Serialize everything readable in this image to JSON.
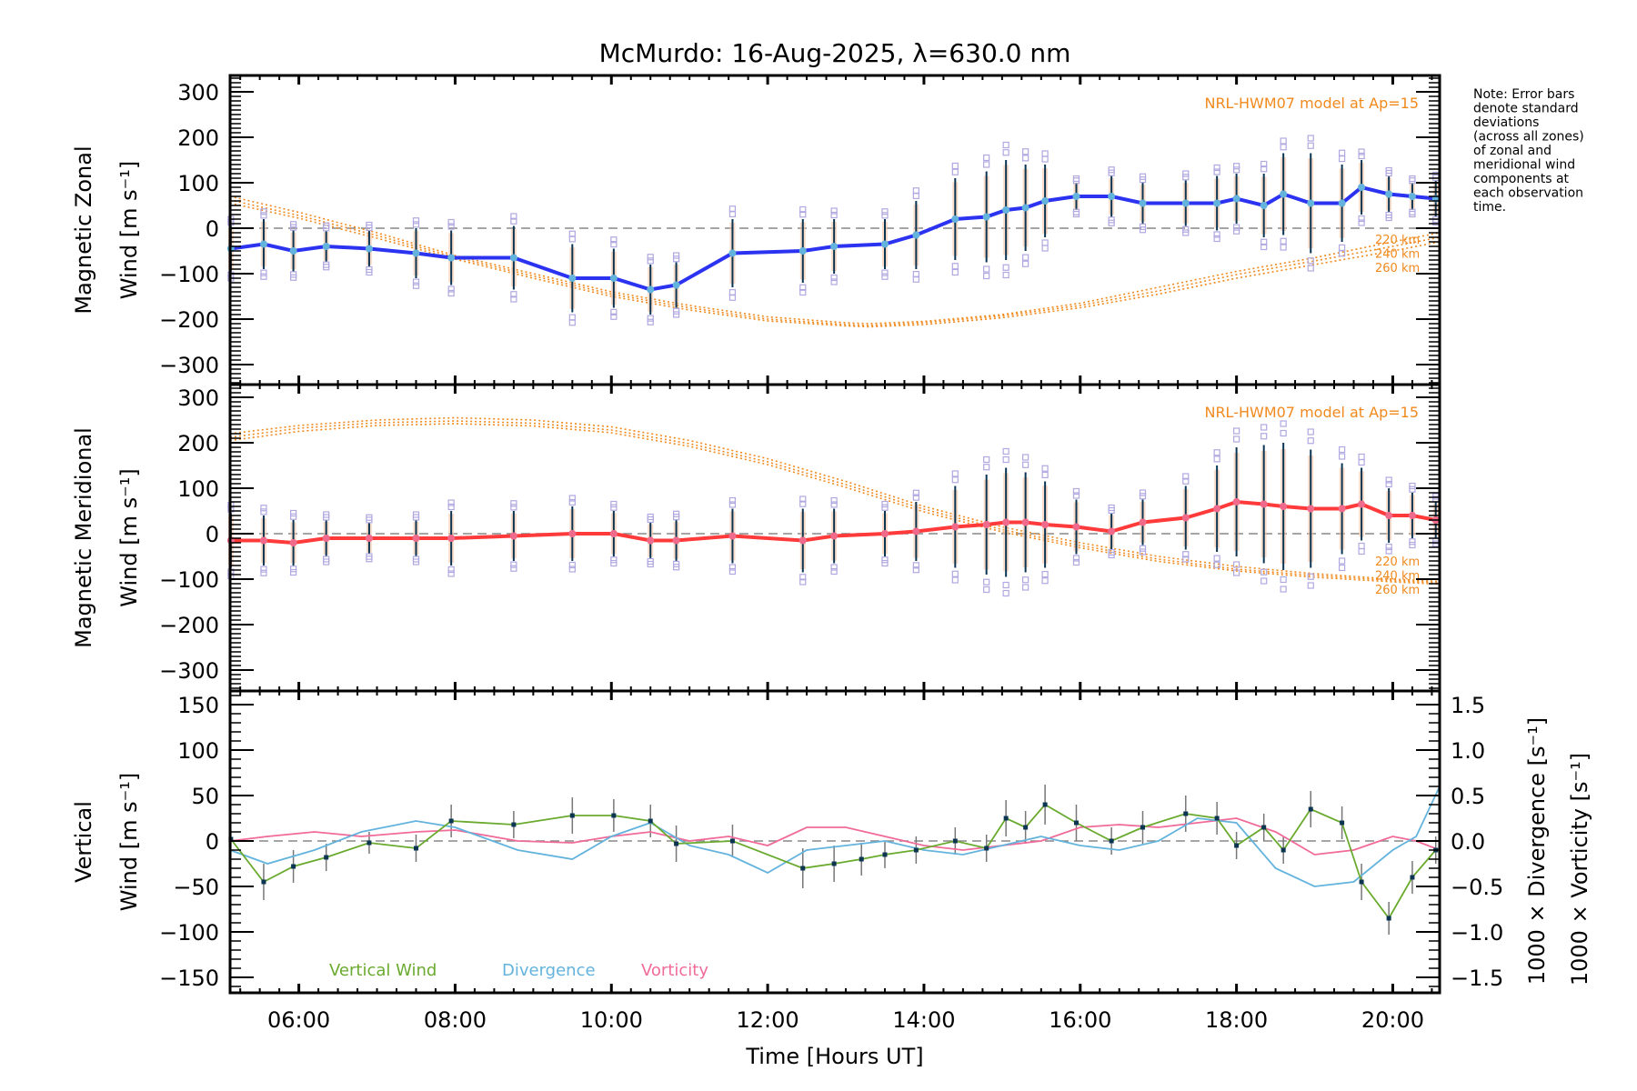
{
  "chart_data": {
    "type": "line",
    "title": "McMurdo: 16-Aug-2025, λ=630.0 nm",
    "xlabel": "Time [Hours UT]",
    "xlim_hours": [
      5.12,
      20.6
    ],
    "x_ticks": [
      {
        "h": 6,
        "label": "06:00"
      },
      {
        "h": 8,
        "label": "08:00"
      },
      {
        "h": 10,
        "label": "10:00"
      },
      {
        "h": 12,
        "label": "12:00"
      },
      {
        "h": 14,
        "label": "14:00"
      },
      {
        "h": 16,
        "label": "16:00"
      },
      {
        "h": 18,
        "label": "18:00"
      },
      {
        "h": 20,
        "label": "20:00"
      }
    ],
    "note_lines": [
      "Note: Error bars",
      "denote standard",
      "deviations",
      "(across all zones)",
      "of zonal and",
      "meridional wind",
      "components at",
      "each observation",
      "time."
    ],
    "panels": [
      {
        "id": "zonal",
        "ylabel_line1": "Magnetic Zonal",
        "ylabel_line2": "Wind [m s⁻¹]",
        "ylim": [
          -344,
          336
        ],
        "y_ticks": [
          300,
          200,
          100,
          0,
          -100,
          -200,
          -300
        ],
        "y_tick_labels": [
          "300",
          "200",
          "100",
          "0",
          "−100",
          "−200",
          "−300"
        ],
        "model_label": "NRL-HWM07 model at Ap=15",
        "altitude_labels": [
          "220 km",
          "240 km",
          "260 km"
        ],
        "line_color": "#2b32f0",
        "marker_color": "#63b3dd",
        "series": {
          "name": "Magnetic Zonal Wind",
          "x": [
            5.13,
            5.55,
            5.93,
            6.35,
            6.9,
            7.5,
            7.95,
            8.75,
            9.5,
            10.03,
            10.5,
            10.83,
            11.55,
            12.45,
            12.85,
            13.5,
            13.9,
            14.4,
            14.8,
            15.05,
            15.3,
            15.55,
            15.95,
            16.4,
            16.8,
            17.35,
            17.75,
            18.0,
            18.35,
            18.6,
            18.95,
            19.35,
            19.6,
            19.95,
            20.25,
            20.55
          ],
          "y": [
            -45,
            -35,
            -50,
            -40,
            -45,
            -55,
            -65,
            -65,
            -110,
            -110,
            -135,
            -125,
            -55,
            -50,
            -40,
            -35,
            -15,
            20,
            25,
            40,
            45,
            60,
            70,
            70,
            55,
            55,
            55,
            65,
            50,
            75,
            55,
            55,
            90,
            75,
            70,
            65
          ],
          "err": [
            50,
            55,
            45,
            35,
            40,
            55,
            60,
            70,
            75,
            65,
            55,
            50,
            75,
            70,
            60,
            55,
            75,
            90,
            100,
            110,
            95,
            80,
            30,
            45,
            45,
            50,
            60,
            55,
            70,
            90,
            110,
            85,
            60,
            40,
            30,
            40
          ]
        },
        "model_curves": [
          {
            "altitude": "220 km",
            "x": [
              5.12,
              6,
              7,
              8,
              9,
              10,
              11,
              12,
              13,
              13.3,
              14,
              15,
              16,
              17,
              18,
              19,
              20,
              20.6
            ],
            "y": [
              70,
              35,
              -10,
              -60,
              -100,
              -140,
              -170,
              -195,
              -208,
              -210,
              -205,
              -190,
              -165,
              -130,
              -95,
              -65,
              -30,
              -10
            ]
          },
          {
            "altitude": "240 km",
            "x": [
              5.12,
              6,
              7,
              8,
              9,
              10,
              11,
              12,
              13,
              13.3,
              14,
              15,
              16,
              17,
              18,
              19,
              20,
              20.6
            ],
            "y": [
              62,
              28,
              -16,
              -64,
              -105,
              -145,
              -175,
              -200,
              -212,
              -214,
              -208,
              -193,
              -170,
              -138,
              -102,
              -72,
              -40,
              -20
            ]
          },
          {
            "altitude": "260 km",
            "x": [
              5.12,
              6,
              7,
              8,
              9,
              10,
              11,
              12,
              13,
              13.3,
              14,
              15,
              16,
              17,
              18,
              19,
              20,
              20.6
            ],
            "y": [
              55,
              22,
              -22,
              -68,
              -110,
              -150,
              -180,
              -204,
              -215,
              -217,
              -212,
              -197,
              -175,
              -145,
              -110,
              -80,
              -50,
              -30
            ]
          }
        ]
      },
      {
        "id": "meridional",
        "ylabel_line1": "Magnetic Meridional",
        "ylabel_line2": "Wind [m s⁻¹]",
        "ylim": [
          -346,
          328
        ],
        "y_ticks": [
          300,
          200,
          100,
          0,
          -100,
          -200,
          -300
        ],
        "y_tick_labels": [
          "300",
          "200",
          "100",
          "0",
          "−100",
          "−200",
          "−300"
        ],
        "model_label": "NRL-HWM07 model at Ap=15",
        "altitude_labels": [
          "220 km",
          "240 km",
          "260 km"
        ],
        "line_color": "#ff3a3a",
        "marker_color": "#f06a8c",
        "series": {
          "name": "Magnetic Meridional Wind",
          "x": [
            5.13,
            5.55,
            5.93,
            6.35,
            6.9,
            7.5,
            7.95,
            8.75,
            9.5,
            10.03,
            10.5,
            10.83,
            11.55,
            12.45,
            12.85,
            13.5,
            13.9,
            14.4,
            14.8,
            15.05,
            15.3,
            15.55,
            15.95,
            16.4,
            16.8,
            17.35,
            17.75,
            18.0,
            18.35,
            18.6,
            18.95,
            19.35,
            19.6,
            19.95,
            20.25,
            20.55
          ],
          "y": [
            -15,
            -15,
            -20,
            -10,
            -10,
            -10,
            -10,
            -5,
            0,
            0,
            -15,
            -15,
            -5,
            -15,
            -5,
            0,
            5,
            15,
            20,
            25,
            25,
            20,
            15,
            5,
            25,
            35,
            55,
            70,
            65,
            60,
            55,
            55,
            65,
            40,
            40,
            30
          ],
          "err": [
            60,
            55,
            50,
            40,
            35,
            40,
            60,
            55,
            60,
            50,
            40,
            45,
            60,
            70,
            60,
            50,
            65,
            90,
            110,
            120,
            110,
            95,
            60,
            40,
            50,
            70,
            95,
            120,
            130,
            140,
            130,
            100,
            80,
            60,
            50,
            40
          ]
        },
        "model_curves": [
          {
            "altitude": "220 km",
            "x": [
              5.12,
              6,
              7,
              8,
              9,
              10,
              11,
              12,
              13,
              14,
              15,
              16,
              17,
              18,
              19,
              20,
              20.6
            ],
            "y": [
              220,
              238,
              250,
              255,
              250,
              235,
              205,
              165,
              115,
              60,
              15,
              -20,
              -50,
              -72,
              -88,
              -100,
              -105
            ]
          },
          {
            "altitude": "240 km",
            "x": [
              5.12,
              6,
              7,
              8,
              9,
              10,
              11,
              12,
              13,
              14,
              15,
              16,
              17,
              18,
              19,
              20,
              20.6
            ],
            "y": [
              212,
              232,
              244,
              248,
              243,
              228,
              198,
              158,
              108,
              54,
              9,
              -26,
              -56,
              -78,
              -92,
              -103,
              -108
            ]
          },
          {
            "altitude": "260 km",
            "x": [
              5.12,
              6,
              7,
              8,
              9,
              10,
              11,
              12,
              13,
              14,
              15,
              16,
              17,
              18,
              19,
              20,
              20.6
            ],
            "y": [
              205,
              225,
              238,
              242,
              237,
              222,
              192,
              152,
              102,
              48,
              4,
              -31,
              -61,
              -82,
              -96,
              -106,
              -111
            ]
          }
        ]
      },
      {
        "id": "vertical",
        "ylabel_line1": "Vertical",
        "ylabel_line2": "Wind [m s⁻¹]",
        "ylim": [
          -167,
          165
        ],
        "y_ticks": [
          150,
          100,
          50,
          0,
          -50,
          -100,
          -150
        ],
        "y_tick_labels": [
          "150",
          "100",
          "50",
          "0",
          "−50",
          "−100",
          "−150"
        ],
        "right_axis": {
          "label_divergence": "1000 × Divergence [s⁻¹]",
          "label_vorticity": "1000 × Vorticity [s⁻¹]",
          "ylim": [
            -1.67,
            1.65
          ],
          "ticks": [
            1.5,
            1.0,
            0.5,
            0.0,
            -0.5,
            -1.0,
            -1.5
          ],
          "tick_labels": [
            "1.5",
            "1.0",
            "0.5",
            "0.0",
            "−0.5",
            "−1.0",
            "−1.5"
          ]
        },
        "legend": [
          {
            "name": "Vertical Wind",
            "color": "#6aaa2e"
          },
          {
            "name": "Divergence",
            "color": "#63b3dd"
          },
          {
            "name": "Vorticity",
            "color": "#f06a9a"
          }
        ],
        "vertical_wind": {
          "x": [
            5.13,
            5.55,
            5.93,
            6.35,
            6.9,
            7.5,
            7.95,
            8.75,
            9.5,
            10.03,
            10.5,
            10.83,
            11.55,
            12.45,
            12.85,
            13.2,
            13.5,
            13.9,
            14.4,
            14.8,
            15.05,
            15.3,
            15.55,
            15.95,
            16.4,
            16.8,
            17.35,
            17.75,
            18.0,
            18.35,
            18.6,
            18.95,
            19.35,
            19.6,
            19.95,
            20.25,
            20.55
          ],
          "y": [
            2,
            -45,
            -28,
            -18,
            -2,
            -8,
            22,
            18,
            28,
            28,
            22,
            -3,
            0,
            -30,
            -25,
            -20,
            -15,
            -10,
            0,
            -8,
            25,
            15,
            40,
            20,
            0,
            15,
            30,
            25,
            -5,
            15,
            -10,
            35,
            20,
            -45,
            -85,
            -40,
            -10
          ],
          "err": [
            10,
            20,
            18,
            15,
            12,
            15,
            18,
            15,
            20,
            18,
            18,
            20,
            18,
            22,
            20,
            18,
            15,
            15,
            15,
            15,
            20,
            18,
            22,
            20,
            15,
            18,
            20,
            18,
            15,
            15,
            15,
            20,
            18,
            20,
            18,
            18,
            15
          ]
        },
        "divergence": {
          "x": [
            5.12,
            5.6,
            6.2,
            6.8,
            7.5,
            8.0,
            8.8,
            9.5,
            10.0,
            10.5,
            11.0,
            11.5,
            12.0,
            12.5,
            13.0,
            13.5,
            14.0,
            14.5,
            15.0,
            15.5,
            16.0,
            16.5,
            17.0,
            17.5,
            18.0,
            18.5,
            19.0,
            19.5,
            20.0,
            20.3,
            20.6
          ],
          "y": [
            -0.1,
            -0.25,
            -0.1,
            0.1,
            0.22,
            0.15,
            -0.1,
            -0.2,
            0.05,
            0.2,
            -0.05,
            -0.15,
            -0.35,
            -0.1,
            -0.05,
            0.0,
            -0.1,
            -0.15,
            -0.05,
            0.05,
            -0.05,
            -0.1,
            0.0,
            0.25,
            0.2,
            -0.3,
            -0.5,
            -0.45,
            -0.1,
            0.05,
            0.6
          ]
        },
        "vorticity": {
          "x": [
            5.12,
            5.6,
            6.2,
            6.8,
            7.5,
            8.0,
            8.8,
            9.5,
            10.0,
            10.5,
            11.0,
            11.5,
            12.0,
            12.5,
            13.0,
            13.5,
            14.0,
            14.5,
            15.0,
            15.5,
            16.0,
            16.5,
            17.0,
            17.5,
            18.0,
            18.5,
            19.0,
            19.5,
            20.0,
            20.3,
            20.6
          ],
          "y": [
            0.0,
            0.05,
            0.1,
            0.05,
            0.1,
            0.12,
            0.0,
            -0.02,
            0.05,
            0.1,
            0.0,
            0.05,
            -0.05,
            0.15,
            0.15,
            0.05,
            -0.05,
            -0.1,
            -0.05,
            0.0,
            0.15,
            0.18,
            0.15,
            0.2,
            0.25,
            0.1,
            -0.15,
            -0.1,
            0.05,
            0.0,
            -0.1
          ]
        }
      }
    ]
  }
}
